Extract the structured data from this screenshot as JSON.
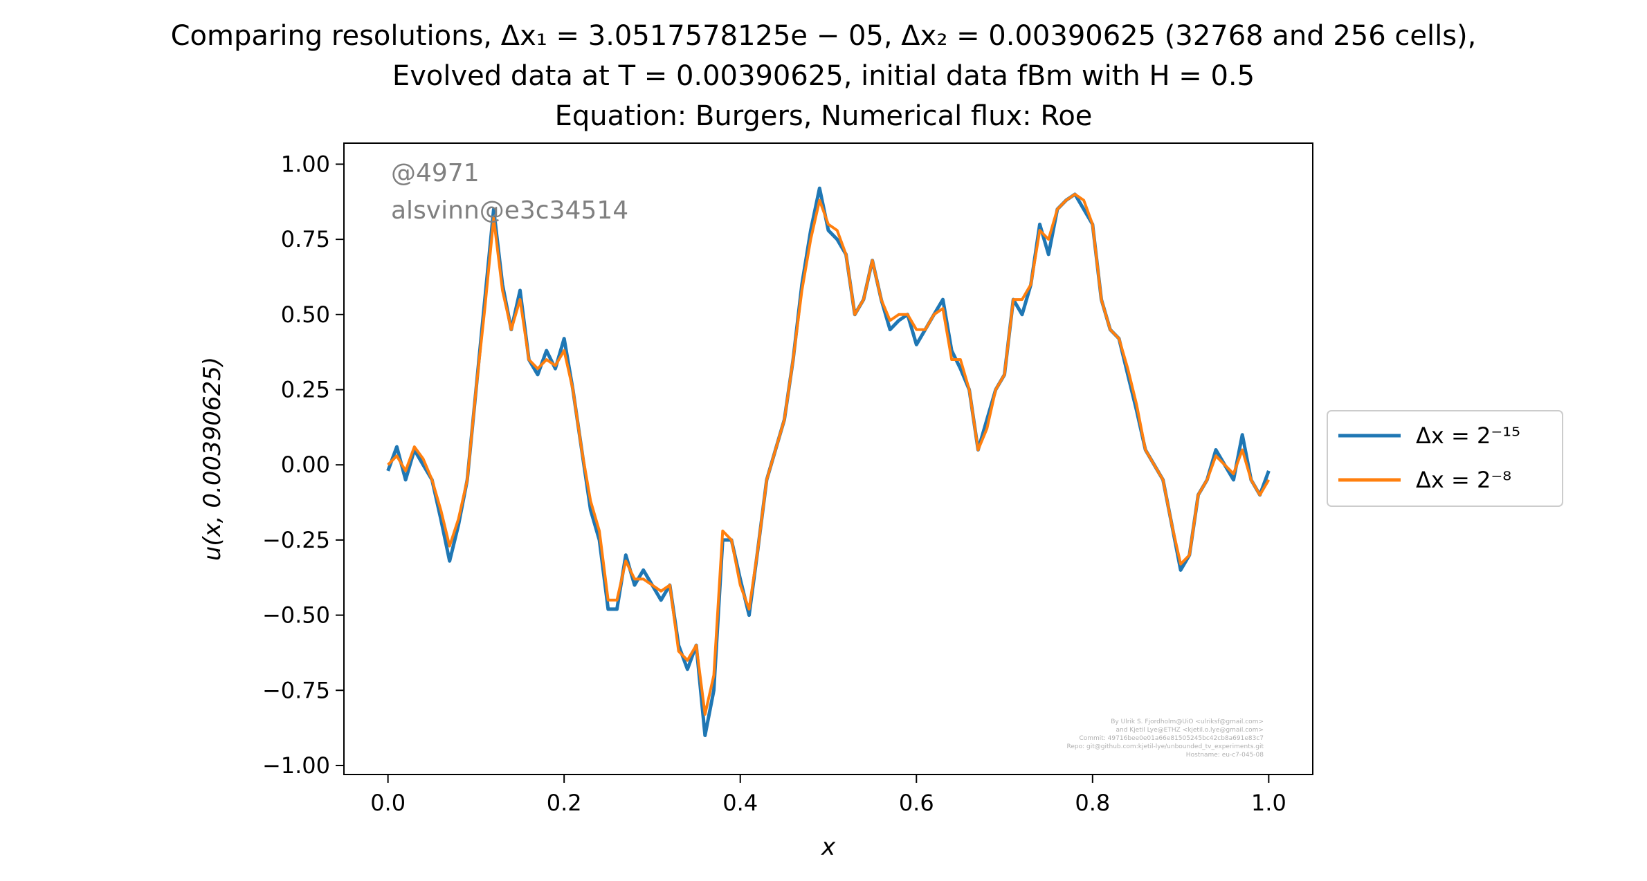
{
  "title_lines": [
    "Comparing resolutions, Δx₁ = 3.0517578125e − 05, Δx₂ = 0.00390625 (32768 and 256 cells),",
    "Evolved data at T = 0.00390625, initial data fBm with H = 0.5",
    "Equation: Burgers, Numerical flux: Roe"
  ],
  "annotation": {
    "line1": "@4971",
    "line2": "alsvinn@e3c34514"
  },
  "credits": [
    "By Ulrik S. Fjordholm@UiO <ulriksf@gmail.com>",
    "and Kjetil Lye@ETHZ <kjetil.o.lye@gmail.com>",
    "Commit: 49716bee0e01a66e81505245bc42cb8a691e83c7",
    "Repo: git@github.com:kjetil-lye/unbounded_tv_experiments.git",
    "Hostname: eu-c7-045-08"
  ],
  "colors": {
    "series1": "#1f77b4",
    "series2": "#ff7f0e",
    "axis": "#000000"
  },
  "chart_data": {
    "type": "line",
    "xlabel": "x",
    "ylabel": "u(x, 0.00390625)",
    "xlim": [
      -0.05,
      1.05
    ],
    "ylim": [
      -1.03,
      1.07
    ],
    "xticks": [
      0.0,
      0.2,
      0.4,
      0.6,
      0.8,
      1.0
    ],
    "xtick_labels": [
      "0.0",
      "0.2",
      "0.4",
      "0.6",
      "0.8",
      "1.0"
    ],
    "yticks": [
      -1.0,
      -0.75,
      -0.5,
      -0.25,
      0.0,
      0.25,
      0.5,
      0.75,
      1.0
    ],
    "ytick_labels": [
      "−1.00",
      "−0.75",
      "−0.50",
      "−0.25",
      "0.00",
      "0.25",
      "0.50",
      "0.75",
      "1.00"
    ],
    "legend_position": "center-right-outside",
    "grid": false,
    "series": [
      {
        "name": "Δx = 2⁻¹⁵",
        "color": "#1f77b4",
        "x": [
          0.0,
          0.01,
          0.02,
          0.03,
          0.04,
          0.05,
          0.06,
          0.07,
          0.08,
          0.09,
          0.1,
          0.11,
          0.12,
          0.13,
          0.14,
          0.15,
          0.16,
          0.17,
          0.18,
          0.19,
          0.2,
          0.21,
          0.22,
          0.23,
          0.24,
          0.25,
          0.26,
          0.27,
          0.28,
          0.29,
          0.3,
          0.31,
          0.32,
          0.33,
          0.34,
          0.35,
          0.36,
          0.37,
          0.38,
          0.39,
          0.4,
          0.41,
          0.42,
          0.43,
          0.44,
          0.45,
          0.46,
          0.47,
          0.48,
          0.49,
          0.5,
          0.51,
          0.52,
          0.53,
          0.54,
          0.55,
          0.56,
          0.57,
          0.58,
          0.59,
          0.6,
          0.61,
          0.62,
          0.63,
          0.64,
          0.65,
          0.66,
          0.67,
          0.68,
          0.69,
          0.7,
          0.71,
          0.72,
          0.73,
          0.74,
          0.75,
          0.76,
          0.77,
          0.78,
          0.79,
          0.8,
          0.81,
          0.82,
          0.83,
          0.84,
          0.85,
          0.86,
          0.87,
          0.88,
          0.89,
          0.9,
          0.91,
          0.92,
          0.93,
          0.94,
          0.95,
          0.96,
          0.97,
          0.98,
          0.99,
          1.0
        ],
        "y": [
          -0.02,
          0.06,
          -0.05,
          0.05,
          0.0,
          -0.05,
          -0.18,
          -0.32,
          -0.2,
          -0.05,
          0.25,
          0.55,
          0.85,
          0.6,
          0.45,
          0.58,
          0.35,
          0.3,
          0.38,
          0.32,
          0.42,
          0.25,
          0.05,
          -0.15,
          -0.25,
          -0.48,
          -0.48,
          -0.3,
          -0.4,
          -0.35,
          -0.4,
          -0.45,
          -0.4,
          -0.6,
          -0.68,
          -0.6,
          -0.9,
          -0.75,
          -0.25,
          -0.25,
          -0.38,
          -0.5,
          -0.28,
          -0.05,
          0.05,
          0.15,
          0.35,
          0.6,
          0.78,
          0.92,
          0.78,
          0.75,
          0.7,
          0.5,
          0.55,
          0.68,
          0.55,
          0.45,
          0.48,
          0.5,
          0.4,
          0.45,
          0.5,
          0.55,
          0.38,
          0.32,
          0.25,
          0.05,
          0.15,
          0.25,
          0.3,
          0.55,
          0.5,
          0.6,
          0.8,
          0.7,
          0.85,
          0.88,
          0.9,
          0.85,
          0.8,
          0.55,
          0.45,
          0.42,
          0.3,
          0.18,
          0.05,
          0.0,
          -0.05,
          -0.2,
          -0.35,
          -0.3,
          -0.1,
          -0.05,
          0.05,
          0.0,
          -0.05,
          0.1,
          -0.05,
          -0.1,
          -0.02
        ]
      },
      {
        "name": "Δx = 2⁻⁸",
        "color": "#ff7f0e",
        "x": [
          0.0,
          0.01,
          0.02,
          0.03,
          0.04,
          0.05,
          0.06,
          0.07,
          0.08,
          0.09,
          0.1,
          0.11,
          0.12,
          0.13,
          0.14,
          0.15,
          0.16,
          0.17,
          0.18,
          0.19,
          0.2,
          0.21,
          0.22,
          0.23,
          0.24,
          0.25,
          0.26,
          0.27,
          0.28,
          0.29,
          0.3,
          0.31,
          0.32,
          0.33,
          0.34,
          0.35,
          0.36,
          0.37,
          0.38,
          0.39,
          0.4,
          0.41,
          0.42,
          0.43,
          0.44,
          0.45,
          0.46,
          0.47,
          0.48,
          0.49,
          0.5,
          0.51,
          0.52,
          0.53,
          0.54,
          0.55,
          0.56,
          0.57,
          0.58,
          0.59,
          0.6,
          0.61,
          0.62,
          0.63,
          0.64,
          0.65,
          0.66,
          0.67,
          0.68,
          0.69,
          0.7,
          0.71,
          0.72,
          0.73,
          0.74,
          0.75,
          0.76,
          0.77,
          0.78,
          0.79,
          0.8,
          0.81,
          0.82,
          0.83,
          0.84,
          0.85,
          0.86,
          0.87,
          0.88,
          0.89,
          0.9,
          0.91,
          0.92,
          0.93,
          0.94,
          0.95,
          0.96,
          0.97,
          0.98,
          0.99,
          1.0
        ],
        "y": [
          0.0,
          0.03,
          -0.02,
          0.06,
          0.02,
          -0.05,
          -0.15,
          -0.27,
          -0.18,
          -0.05,
          0.25,
          0.52,
          0.82,
          0.58,
          0.45,
          0.55,
          0.35,
          0.32,
          0.35,
          0.33,
          0.38,
          0.25,
          0.05,
          -0.12,
          -0.22,
          -0.45,
          -0.45,
          -0.32,
          -0.38,
          -0.38,
          -0.4,
          -0.42,
          -0.4,
          -0.62,
          -0.65,
          -0.6,
          -0.83,
          -0.7,
          -0.22,
          -0.25,
          -0.4,
          -0.48,
          -0.28,
          -0.05,
          0.05,
          0.15,
          0.35,
          0.58,
          0.75,
          0.88,
          0.8,
          0.78,
          0.7,
          0.5,
          0.55,
          0.68,
          0.55,
          0.48,
          0.5,
          0.5,
          0.45,
          0.45,
          0.5,
          0.52,
          0.35,
          0.35,
          0.25,
          0.05,
          0.12,
          0.25,
          0.3,
          0.55,
          0.55,
          0.6,
          0.78,
          0.75,
          0.85,
          0.88,
          0.9,
          0.88,
          0.8,
          0.55,
          0.45,
          0.42,
          0.32,
          0.2,
          0.05,
          0.0,
          -0.05,
          -0.2,
          -0.33,
          -0.3,
          -0.1,
          -0.05,
          0.03,
          0.0,
          -0.03,
          0.05,
          -0.05,
          -0.1,
          -0.05
        ]
      }
    ]
  }
}
